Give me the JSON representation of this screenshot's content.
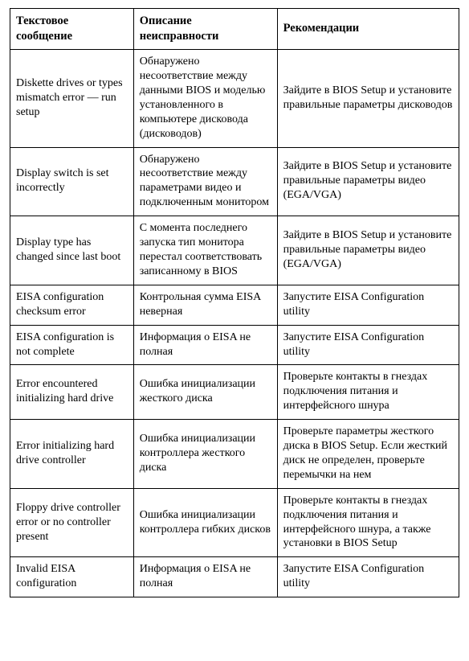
{
  "table": {
    "columns": [
      "Текстовое сообщение",
      "Описание неисправности",
      "Рекомендации"
    ],
    "rows": [
      [
        "Diskette drives or types mismatch error — run setup",
        "Обнаружено несоответствие между данными BIOS и моделью установленного в компьютере дисковода (дисководов)",
        "Зайдите в BIOS Setup и установите правильные параметры дисководов"
      ],
      [
        "Display switch is set incorrectly",
        "Обнаружено несоответствие между параметрами видео и подключенным монитором",
        "Зайдите в BIOS Setup и установите правильные параметры видео (EGA/VGA)"
      ],
      [
        "Display type has changed since last boot",
        "С момента последнего запуска тип монитора перестал соответствовать записанному в BIOS",
        "Зайдите в BIOS Setup и установите правильные параметры видео (EGA/VGA)"
      ],
      [
        "EISA configuration checksum error",
        "Контрольная сумма EISA неверная",
        "Запустите EISA Configuration utility"
      ],
      [
        "EISA configuration is not complete",
        "Информация о EISA не полная",
        "Запустите EISA Configuration utility"
      ],
      [
        "Error encountered initializing hard drive",
        "Ошибка инициализации жесткого диска",
        "Проверьте контакты в гнездах подключения питания и интерфейсного шнура"
      ],
      [
        "Error initializing hard drive controller",
        "Ошибка инициализации контроллера жесткого диска",
        "Проверьте параметры жесткого диска в BIOS Setup. Если жесткий диск не определен, проверьте перемычки на нем"
      ],
      [
        "Floppy drive controller error or no controller present",
        "Ошибка инициализации контроллера гибких дисков",
        "Проверьте контакты в гнездах подключения питания и интерфейсного шнура, а также установки в BIOS Setup"
      ],
      [
        "Invalid EISA configuration",
        "Информация о EISA не полная",
        "Запустите EISA Configuration utility"
      ]
    ],
    "font_family": "Times New Roman",
    "header_font_weight": "bold",
    "header_font_size_pt": 11,
    "body_font_size_pt": 10.5,
    "border_color": "#000000",
    "background_color": "#ffffff",
    "text_color": "#000000",
    "column_widths_pct": [
      27.5,
      32,
      40.5
    ]
  }
}
